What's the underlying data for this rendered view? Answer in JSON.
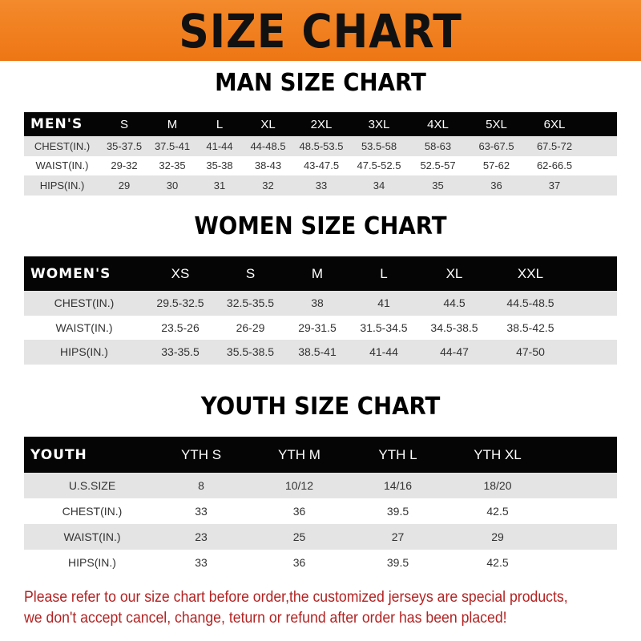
{
  "title": "SIZE CHART",
  "men": {
    "title": "MAN SIZE CHART",
    "header": "MEN'S",
    "sizes": [
      "S",
      "M",
      "L",
      "XL",
      "2XL",
      "3XL",
      "4XL",
      "5XL",
      "6XL"
    ],
    "rows": [
      {
        "label": "CHEST(IN.)",
        "values": [
          "35-37.5",
          "37.5-41",
          "41-44",
          "44-48.5",
          "48.5-53.5",
          "53.5-58",
          "58-63",
          "63-67.5",
          "67.5-72"
        ]
      },
      {
        "label": "WAIST(IN.)",
        "values": [
          "29-32",
          "32-35",
          "35-38",
          "38-43",
          "43-47.5",
          "47.5-52.5",
          "52.5-57",
          "57-62",
          "62-66.5"
        ]
      },
      {
        "label": "HIPS(IN.)",
        "values": [
          "29",
          "30",
          "31",
          "32",
          "33",
          "34",
          "35",
          "36",
          "37"
        ]
      }
    ]
  },
  "women": {
    "title": "WOMEN SIZE CHART",
    "header": "WOMEN'S",
    "sizes": [
      "XS",
      "S",
      "M",
      "L",
      "XL",
      "XXL"
    ],
    "rows": [
      {
        "label": "CHEST(IN.)",
        "values": [
          "29.5-32.5",
          "32.5-35.5",
          "38",
          "41",
          "44.5",
          "44.5-48.5"
        ]
      },
      {
        "label": "WAIST(IN.)",
        "values": [
          "23.5-26",
          "26-29",
          "29-31.5",
          "31.5-34.5",
          "34.5-38.5",
          "38.5-42.5"
        ]
      },
      {
        "label": "HIPS(IN.)",
        "values": [
          "33-35.5",
          "35.5-38.5",
          "38.5-41",
          "41-44",
          "44-47",
          "47-50"
        ]
      }
    ]
  },
  "youth": {
    "title": "YOUTH SIZE CHART",
    "header": "YOUTH",
    "sizes": [
      "YTH S",
      "YTH M",
      "YTH L",
      "YTH XL"
    ],
    "rows": [
      {
        "label": "U.S.SIZE",
        "values": [
          "8",
          "10/12",
          "14/16",
          "18/20"
        ]
      },
      {
        "label": "CHEST(IN.)",
        "values": [
          "33",
          "36",
          "39.5",
          "42.5"
        ]
      },
      {
        "label": "WAIST(IN.)",
        "values": [
          "23",
          "25",
          "27",
          "29"
        ]
      },
      {
        "label": "HIPS(IN.)",
        "values": [
          "33",
          "36",
          "39.5",
          "42.5"
        ]
      }
    ]
  },
  "note": [
    "Please refer to our size chart before order,the customized jerseys are special products,",
    "we don't accept cancel, change, teturn or refund after order has been placed!"
  ],
  "colors": {
    "banner": "#f07a1a",
    "header_row": "#050505",
    "stripe": "#e4e4e4",
    "note": "#b42222"
  }
}
